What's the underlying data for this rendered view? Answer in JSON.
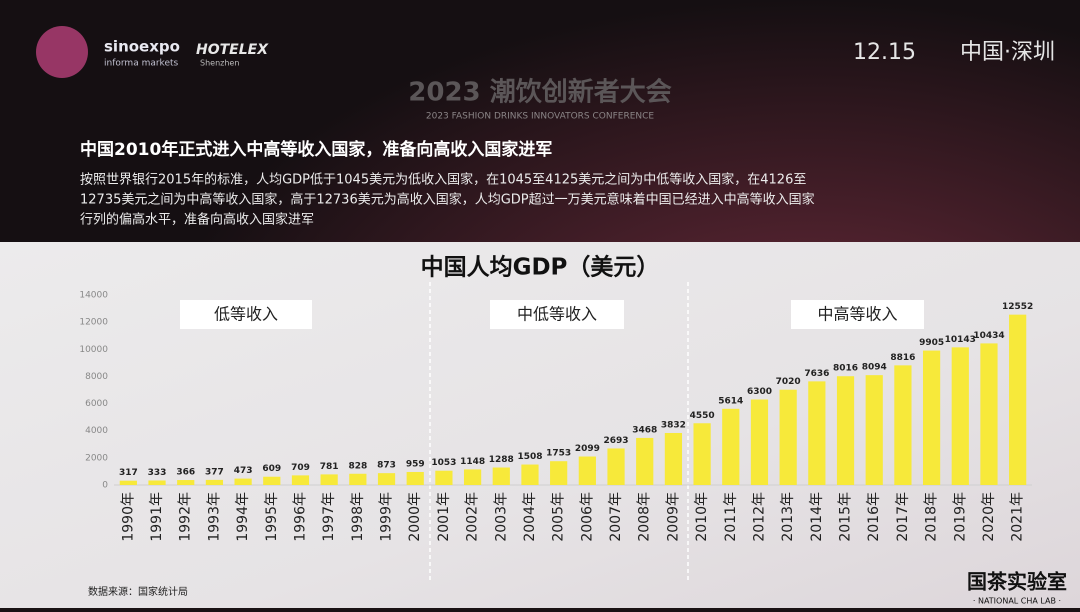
{
  "header": {
    "logos": [
      "sinoexpo",
      "informa markets",
      "HOTELEX",
      "Shenzhen"
    ],
    "event_title": "2023 潮饮创新者大会",
    "event_subtitle": "2023 FASHION DRINKS INNOVATORS CONFERENCE",
    "date": "12.15",
    "location": "中国·深圳"
  },
  "headline": "中国2010年正式进入中高等收入国家，准备向高收入国家进军",
  "body": [
    "按照世界银行2015年的标准，人均GDP低于1045美元为低收入国家，在1045至4125美元之间为中低等收入国家，在4126至",
    "12735美元之间为中高等收入国家，高于12736美元为高收入国家，人均GDP超过一万美元意味着中国已经进入中高等收入国家",
    "行列的偏高水平，准备向高收入国家进军"
  ],
  "chart_data": {
    "type": "bar",
    "title": "中国人均GDP（美元）",
    "categories": [
      "1990年",
      "1991年",
      "1992年",
      "1993年",
      "1994年",
      "1995年",
      "1996年",
      "1997年",
      "1998年",
      "1999年",
      "2000年",
      "2001年",
      "2002年",
      "2003年",
      "2004年",
      "2005年",
      "2006年",
      "2007年",
      "2008年",
      "2009年",
      "2010年",
      "2011年",
      "2012年",
      "2013年",
      "2014年",
      "2015年",
      "2016年",
      "2017年",
      "2018年",
      "2019年",
      "2020年",
      "2021年"
    ],
    "values": [
      317,
      333,
      366,
      377,
      473,
      609,
      709,
      781,
      828,
      873,
      959,
      1053,
      1148,
      1288,
      1508,
      1753,
      2099,
      2693,
      3468,
      3832,
      4550,
      5614,
      6300,
      7020,
      7636,
      8016,
      8094,
      8816,
      9905,
      10143,
      10434,
      12552
    ],
    "color": "#f7e93a",
    "ylim": [
      0,
      14000
    ],
    "yticks": [
      0,
      2000,
      4000,
      6000,
      8000,
      10000,
      12000,
      14000
    ],
    "grid": false,
    "band_labels": [
      "低等收入",
      "中低等收入",
      "中高等收入"
    ]
  },
  "footnote": "数据来源：国家统计局",
  "brand": {
    "name": "国茶实验室",
    "tagline": "· NATIONAL CHA LAB ·"
  }
}
